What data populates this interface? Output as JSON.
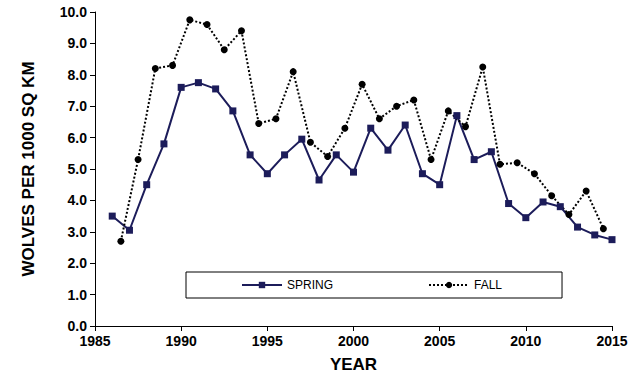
{
  "chart_data": {
    "type": "line",
    "x_label": "YEAR",
    "y_label": "WOLVES PER 1000 SQ KM",
    "xlim": [
      1985,
      2015
    ],
    "xticks": [
      1985,
      1990,
      1995,
      2000,
      2005,
      2010,
      2015
    ],
    "ylim": [
      0,
      10
    ],
    "yticks": [
      {
        "value": 0,
        "label": "0.0"
      },
      {
        "value": 1,
        "label": "1.0"
      },
      {
        "value": 2,
        "label": "2.0"
      },
      {
        "value": 3,
        "label": "3.0"
      },
      {
        "value": 4,
        "label": "4.0"
      },
      {
        "value": 5,
        "label": "5.0"
      },
      {
        "value": 6,
        "label": "6.0"
      },
      {
        "value": 7,
        "label": "7.0"
      },
      {
        "value": 8,
        "label": "8.0"
      },
      {
        "value": 9,
        "label": "9.0"
      },
      {
        "value": 10,
        "label": "10.0"
      }
    ],
    "grid": false,
    "legend": "bottom",
    "series": [
      {
        "name": "SPRING",
        "color": "#1c1c5a",
        "marker": "square",
        "line_style": "solid",
        "x": [
          1986,
          1987,
          1988,
          1989,
          1990,
          1991,
          1992,
          1993,
          1994,
          1995,
          1996,
          1997,
          1998,
          1999,
          2000,
          2001,
          2002,
          2003,
          2004,
          2005,
          2006,
          2007,
          2008,
          2009,
          2010,
          2011,
          2012,
          2013,
          2014,
          2015
        ],
        "values": [
          3.5,
          3.05,
          4.5,
          5.8,
          7.6,
          7.75,
          7.55,
          6.85,
          5.45,
          4.85,
          5.45,
          5.95,
          4.65,
          5.45,
          4.9,
          6.3,
          5.6,
          6.4,
          4.85,
          4.5,
          6.7,
          5.3,
          5.55,
          3.9,
          3.45,
          3.95,
          3.8,
          3.15,
          2.9,
          2.75
        ]
      },
      {
        "name": "FALL",
        "color": "#000000",
        "marker": "circle",
        "line_style": "dotted",
        "x": [
          1986.5,
          1987.5,
          1988.5,
          1989.5,
          1990.5,
          1991.5,
          1992.5,
          1993.5,
          1994.5,
          1995.5,
          1996.5,
          1997.5,
          1998.5,
          1999.5,
          2000.5,
          2001.5,
          2002.5,
          2003.5,
          2004.5,
          2005.5,
          2006.5,
          2007.5,
          2008.5,
          2009.5,
          2010.5,
          2011.5,
          2012.5,
          2013.5,
          2014.5
        ],
        "values": [
          2.7,
          5.3,
          8.2,
          8.3,
          9.75,
          9.6,
          8.8,
          9.4,
          6.45,
          6.6,
          8.1,
          5.85,
          5.4,
          6.3,
          7.7,
          6.6,
          7.0,
          7.2,
          5.3,
          6.85,
          6.35,
          8.25,
          5.15,
          5.2,
          4.85,
          4.15,
          3.55,
          4.3,
          3.1
        ]
      }
    ]
  }
}
